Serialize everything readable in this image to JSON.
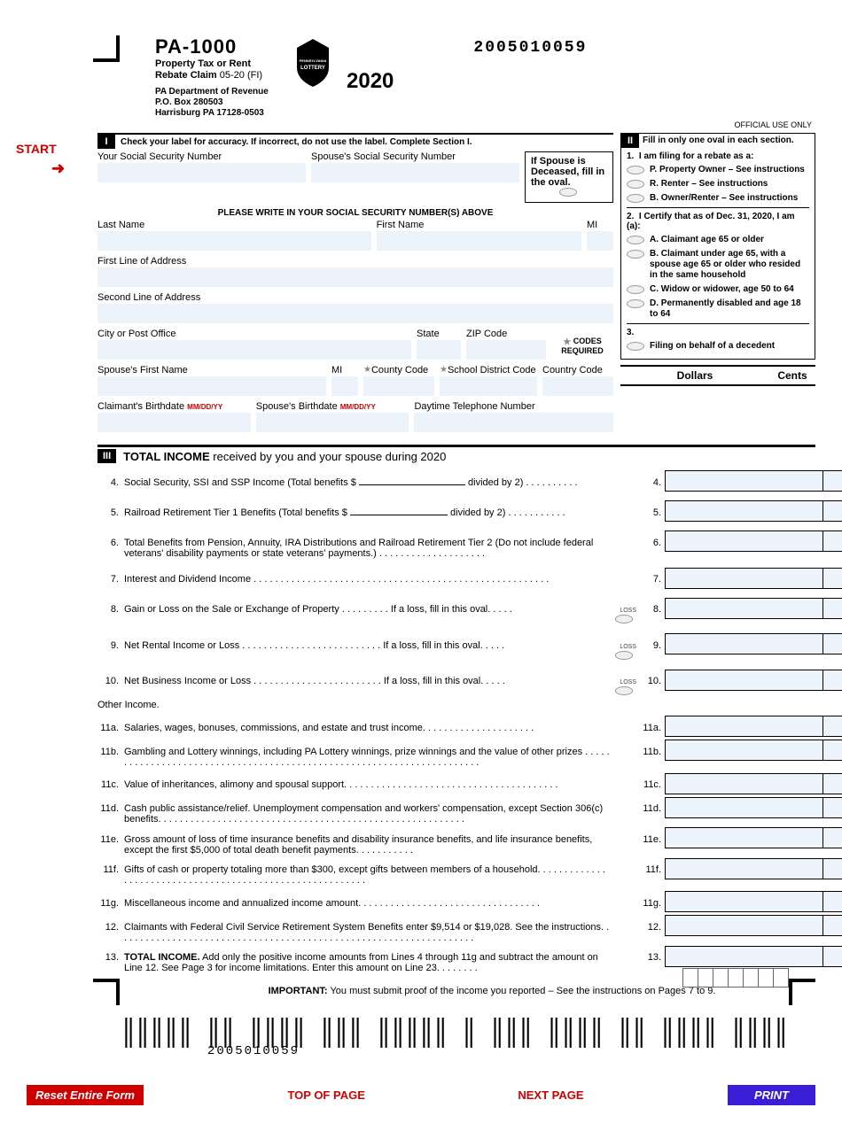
{
  "header": {
    "form_code": "PA-1000",
    "subtitle1": "Property Tax or Rent",
    "subtitle2": "Rebate Claim",
    "revision": "05-20 (FI)",
    "dept1": "PA Department of Revenue",
    "dept2": "P.O. Box 280503",
    "dept3": "Harrisburg PA 17128-0503",
    "year": "2020",
    "form_number": "2005010059",
    "official_use": "OFFICIAL USE ONLY",
    "lottery": "PENNSYLVANIA LOTTERY"
  },
  "start": "START",
  "section1": {
    "num": "I",
    "instruction": "Check your label for accuracy. If incorrect, do not use the label. Complete Section I.",
    "your_ssn": "Your Social Security Number",
    "spouse_ssn": "Spouse's Social Security Number",
    "spouse_deceased": "If Spouse is Deceased, fill in the oval.",
    "ssn_note": "PLEASE WRITE IN YOUR SOCIAL SECURITY NUMBER(S) ABOVE",
    "last_name": "Last Name",
    "first_name": "First Name",
    "mi": "MI",
    "addr1": "First Line of Address",
    "addr2": "Second Line of Address",
    "city": "City or Post Office",
    "state": "State",
    "zip": "ZIP Code",
    "codes_required": "CODES REQUIRED",
    "spouse_first": "Spouse's First Name",
    "county_code": "County Code",
    "school_code": "School District Code",
    "country_code": "Country Code",
    "claimant_bd": "Claimant's Birthdate",
    "spouse_bd": "Spouse's Birthdate",
    "mmddyy": "MM/DD/YY",
    "phone": "Daytime Telephone Number"
  },
  "section2": {
    "num": "II",
    "instruction": "Fill in only one oval in each section.",
    "q1": "I am filing for a rebate as a:",
    "p": "P. Property Owner – See instructions",
    "r": "R. Renter – See instructions",
    "b": "B. Owner/Renter – See instructions",
    "q2": "I Certify that as of Dec. 31, 2020, I am (a):",
    "a": "A. Claimant age 65 or older",
    "b2": "B. Claimant under age 65, with a spouse age 65 or older who resided in the same household",
    "c": "C. Widow or widower, age 50 to 64",
    "d": "D. Permanently disabled and age 18 to 64",
    "q3": "3.",
    "decedent": "Filing on behalf of a decedent",
    "dollars": "Dollars",
    "cents": "Cents"
  },
  "section3": {
    "num": "III",
    "title_bold": "TOTAL INCOME",
    "title_rest": " received by you and your spouse during 2020",
    "l4": "Social Security, SSI and SSP Income (Total benefits $",
    "l4b": "divided by 2)",
    "l5": "Railroad Retirement Tier 1 Benefits (Total benefits $",
    "l5b": "divided by 2)",
    "l6": "Total Benefits from Pension, Annuity, IRA Distributions and Railroad Retirement Tier 2 (Do not include federal veterans' disability payments or state veterans' payments.)",
    "l7": "Interest and Dividend Income",
    "l8": "Gain or Loss on the Sale or Exchange of Property",
    "l8b": "If a loss, fill in this oval.",
    "l9": "Net Rental Income or Loss",
    "l10": "Net Business Income or Loss",
    "other": "Other Income.",
    "l11a": "Salaries, wages, bonuses, commissions, and estate and trust income.",
    "l11b": "Gambling and Lottery winnings, including PA Lottery winnings, prize winnings and the value of other prizes",
    "l11c": "Value of inheritances, alimony and spousal support.",
    "l11d": "Cash public assistance/relief. Unemployment compensation and workers' compensation, except Section 306(c) benefits.",
    "l11e": "Gross amount of loss of time insurance benefits and disability insurance benefits, and life insurance benefits, except the first $5,000 of total death benefit payments.",
    "l11f": "Gifts of cash or property totaling more than $300, except gifts between members of a household.",
    "l11g": "Miscellaneous income and annualized income amount.",
    "l12": "Claimants with Federal Civil Service Retirement System Benefits enter $9,514 or $19,028. See the instructions.",
    "l13a": "TOTAL INCOME.",
    "l13b": " Add only the positive income amounts from Lines 4 through 11g and subtract the amount on Line 12. See Page 3 for income limitations. Enter this amount on Line 23.",
    "loss": "LOSS"
  },
  "footer": {
    "important": "IMPORTANT:",
    "important_text": " You must submit proof of the income you reported – See the instructions on Pages 7 to 9.",
    "barcode_num": "2005010059"
  },
  "buttons": {
    "reset": "Reset Entire Form",
    "top": "TOP OF PAGE",
    "next": "NEXT PAGE",
    "print": "PRINT"
  }
}
